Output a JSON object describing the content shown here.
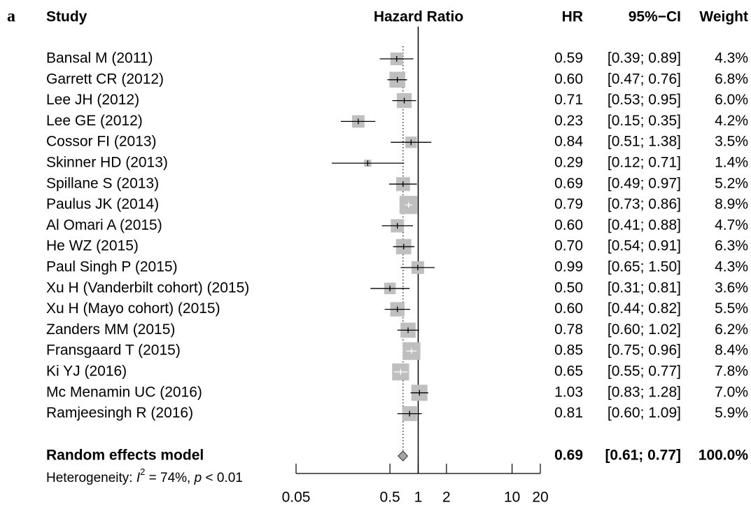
{
  "chart_data": {
    "type": "forest",
    "panel_label": "a",
    "headers": {
      "study": "Study",
      "plot": "Hazard Ratio",
      "estimate": "HR",
      "ci": "95%−CI",
      "weight": "Weight"
    },
    "categories": [
      "Bansal M (2011)",
      "Garrett CR (2012)",
      "Lee JH (2012)",
      "Lee GE (2012)",
      "Cossor FI (2013)",
      "Skinner HD (2013)",
      "Spillane S (2013)",
      "Paulus JK (2014)",
      "Al Omari A (2015)",
      "He WZ (2015)",
      "Paul Singh P (2015)",
      "Xu H (Vanderbilt cohort) (2015)",
      "Xu H (Mayo cohort) (2015)",
      "Zanders MM (2015)",
      "Fransgaard T (2015)",
      "Ki YJ (2016)",
      "Mc Menamin UC (2016)",
      "Ramjeesingh R (2016)"
    ],
    "values": [
      0.59,
      0.6,
      0.71,
      0.23,
      0.84,
      0.29,
      0.69,
      0.79,
      0.6,
      0.7,
      0.99,
      0.5,
      0.6,
      0.78,
      0.85,
      0.65,
      1.03,
      0.81
    ],
    "value_labels": [
      "0.59",
      "0.60",
      "0.71",
      "0.23",
      "0.84",
      "0.29",
      "0.69",
      "0.79",
      "0.60",
      "0.70",
      "0.99",
      "0.50",
      "0.60",
      "0.78",
      "0.85",
      "0.65",
      "1.03",
      "0.81"
    ],
    "ci_lower": [
      0.39,
      0.47,
      0.53,
      0.15,
      0.51,
      0.12,
      0.49,
      0.73,
      0.41,
      0.54,
      0.65,
      0.31,
      0.44,
      0.6,
      0.75,
      0.55,
      0.83,
      0.6
    ],
    "ci_upper": [
      0.89,
      0.76,
      0.95,
      0.35,
      1.38,
      0.71,
      0.97,
      0.86,
      0.88,
      0.91,
      1.5,
      0.81,
      0.82,
      1.02,
      0.96,
      0.77,
      1.28,
      1.09
    ],
    "ci_labels": [
      "[0.39; 0.89]",
      "[0.47; 0.76]",
      "[0.53; 0.95]",
      "[0.15; 0.35]",
      "[0.51; 1.38]",
      "[0.12; 0.71]",
      "[0.49; 0.97]",
      "[0.73; 0.86]",
      "[0.41; 0.88]",
      "[0.54; 0.91]",
      "[0.65; 1.50]",
      "[0.31; 0.81]",
      "[0.44; 0.82]",
      "[0.60; 1.02]",
      "[0.75; 0.96]",
      "[0.55; 0.77]",
      "[0.83; 1.28]",
      "[0.60; 1.09]"
    ],
    "weights": [
      4.3,
      6.8,
      6.0,
      4.2,
      3.5,
      1.4,
      5.2,
      8.9,
      4.7,
      6.3,
      4.3,
      3.6,
      5.5,
      6.2,
      8.4,
      7.8,
      7.0,
      5.9
    ],
    "weight_labels": [
      "4.3%",
      "6.8%",
      "6.0%",
      "4.2%",
      "3.5%",
      "1.4%",
      "5.2%",
      "8.9%",
      "4.7%",
      "6.3%",
      "4.3%",
      "3.6%",
      "5.5%",
      "6.2%",
      "8.4%",
      "7.8%",
      "7.0%",
      "5.9%"
    ],
    "summary": {
      "label": "Random effects model",
      "value": 0.69,
      "value_label": "0.69",
      "ci_lower": 0.61,
      "ci_upper": 0.77,
      "ci_label": "[0.61; 0.77]",
      "weight": 100,
      "weight_label": "100.0%"
    },
    "heterogeneity": [
      "Heterogeneity: ",
      "I",
      "2",
      " = 74%, ",
      "p",
      " < 0.01"
    ],
    "reference_line": 1,
    "x_log": true,
    "xlim": [
      0.05,
      20
    ],
    "xticks": [
      0.05,
      0.5,
      1,
      2,
      10,
      20
    ],
    "square_color": "#bfbfbf",
    "diamond_color": "#a6a6a6"
  }
}
